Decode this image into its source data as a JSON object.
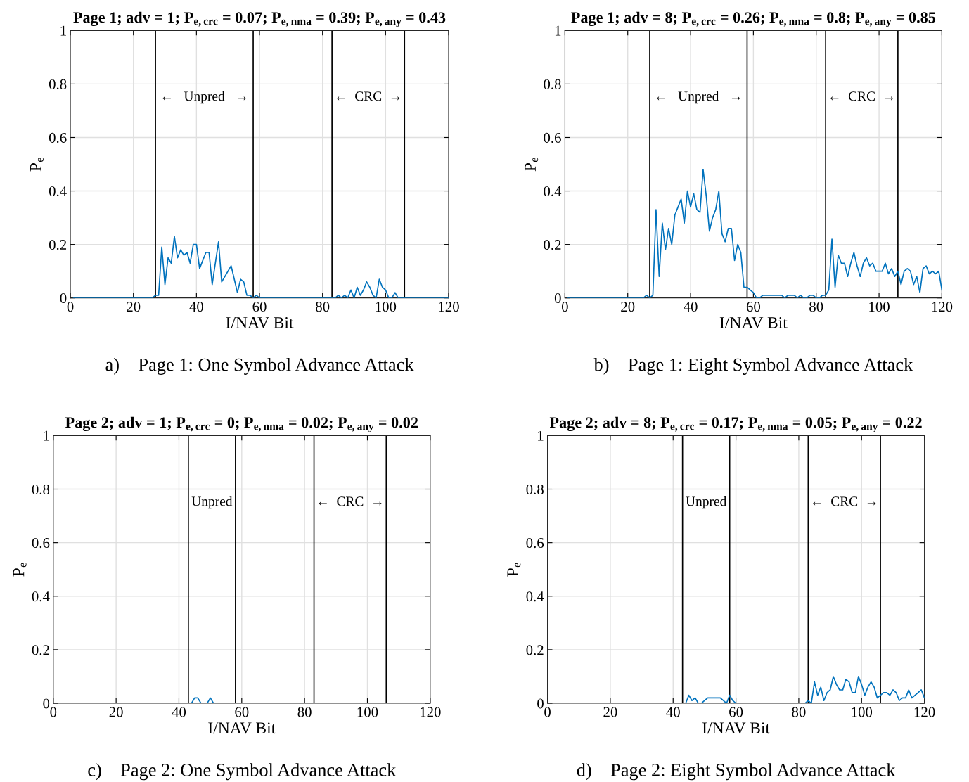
{
  "chart_data": [
    {
      "type": "line",
      "title": "Page 1; adv = 1; P$_{e,crc}$ = 0.07; P$_{e,nma}$ = 0.39; P$_{e,any}$ = 0.43",
      "xlabel": "I/NAV Bit",
      "ylabel": "P$_{e}$",
      "xlim": [
        0,
        120
      ],
      "xticks": [
        0,
        20,
        40,
        60,
        80,
        100,
        120
      ],
      "ylim": [
        0,
        1
      ],
      "yticks": [
        0,
        0.2,
        0.4,
        0.6,
        0.8,
        1
      ],
      "grid": true,
      "series": [
        {
          "color": "#0072bd",
          "x": [
            1,
            2,
            3,
            4,
            5,
            6,
            7,
            8,
            9,
            10,
            11,
            12,
            13,
            14,
            15,
            16,
            17,
            18,
            19,
            20,
            21,
            22,
            23,
            24,
            25,
            26,
            27,
            28,
            29,
            30,
            31,
            32,
            33,
            34,
            35,
            36,
            37,
            38,
            39,
            40,
            41,
            42,
            43,
            44,
            45,
            46,
            47,
            48,
            49,
            50,
            51,
            52,
            53,
            54,
            55,
            56,
            57,
            58,
            59,
            60,
            61,
            62,
            63,
            64,
            65,
            66,
            67,
            68,
            69,
            70,
            71,
            72,
            73,
            74,
            75,
            76,
            77,
            78,
            79,
            80,
            81,
            82,
            83,
            84,
            85,
            86,
            87,
            88,
            89,
            90,
            91,
            92,
            93,
            94,
            95,
            96,
            97,
            98,
            99,
            100,
            101,
            102,
            103,
            104,
            105,
            106,
            107,
            108,
            109,
            110,
            111,
            112,
            113,
            114,
            115,
            116,
            117,
            118,
            119,
            120
          ],
          "values": [
            0,
            0,
            0,
            0,
            0,
            0,
            0,
            0,
            0,
            0,
            0,
            0,
            0,
            0,
            0,
            0,
            0,
            0,
            0,
            0,
            0,
            0,
            0,
            0,
            0,
            0,
            0.01,
            0.01,
            0.19,
            0.05,
            0.15,
            0.13,
            0.23,
            0.15,
            0.18,
            0.16,
            0.17,
            0.13,
            0.2,
            0.2,
            0.11,
            0.14,
            0.17,
            0.17,
            0.05,
            0.13,
            0.21,
            0.06,
            0.08,
            0.1,
            0.12,
            0.07,
            0.02,
            0.07,
            0.06,
            0.01,
            0.01,
            0,
            0.01,
            0,
            0,
            0,
            0,
            0,
            0,
            0,
            0,
            0,
            0,
            0,
            0,
            0,
            0,
            0,
            0,
            0,
            0,
            0,
            0,
            0,
            0,
            0,
            0,
            0,
            0.01,
            0,
            0.01,
            0,
            0.03,
            0,
            0.04,
            0.01,
            0.03,
            0.06,
            0.04,
            0.01,
            0,
            0.07,
            0.04,
            0.03,
            0,
            0,
            0.02,
            0,
            0,
            0,
            0,
            0,
            0,
            0,
            0,
            0,
            0,
            0,
            0,
            0,
            0,
            0,
            0,
            0
          ]
        }
      ],
      "ref_lines": [
        {
          "axis": "x",
          "value": 27,
          "color": "#000000"
        },
        {
          "axis": "x",
          "value": 58,
          "color": "#000000"
        },
        {
          "axis": "x",
          "value": 83,
          "color": "#000000"
        },
        {
          "axis": "x",
          "value": 106,
          "color": "#000000"
        }
      ],
      "annotations": [
        "←   Unpred   →",
        "←  CRC  →",
        "a)    Page 1: One Symbol Advance Attack"
      ]
    },
    {
      "type": "line",
      "title": "Page 1; adv = 8; P$_{e,crc}$ = 0.26; P$_{e,nma}$ = 0.8; P$_{e,any}$ = 0.85",
      "xlabel": "I/NAV Bit",
      "ylabel": "P$_{e}$",
      "xlim": [
        0,
        120
      ],
      "xticks": [
        0,
        20,
        40,
        60,
        80,
        100,
        120
      ],
      "ylim": [
        0,
        1
      ],
      "yticks": [
        0,
        0.2,
        0.4,
        0.6,
        0.8,
        1
      ],
      "grid": true,
      "series": [
        {
          "color": "#0072bd",
          "x": [
            1,
            2,
            3,
            4,
            5,
            6,
            7,
            8,
            9,
            10,
            11,
            12,
            13,
            14,
            15,
            16,
            17,
            18,
            19,
            20,
            21,
            22,
            23,
            24,
            25,
            26,
            27,
            28,
            29,
            30,
            31,
            32,
            33,
            34,
            35,
            36,
            37,
            38,
            39,
            40,
            41,
            42,
            43,
            44,
            45,
            46,
            47,
            48,
            49,
            50,
            51,
            52,
            53,
            54,
            55,
            56,
            57,
            58,
            59,
            60,
            61,
            62,
            63,
            64,
            65,
            66,
            67,
            68,
            69,
            70,
            71,
            72,
            73,
            74,
            75,
            76,
            77,
            78,
            79,
            80,
            81,
            82,
            83,
            84,
            85,
            86,
            87,
            88,
            89,
            90,
            91,
            92,
            93,
            94,
            95,
            96,
            97,
            98,
            99,
            100,
            101,
            102,
            103,
            104,
            105,
            106,
            107,
            108,
            109,
            110,
            111,
            112,
            113,
            114,
            115,
            116,
            117,
            118,
            119,
            120
          ],
          "values": [
            0,
            0,
            0,
            0,
            0,
            0,
            0,
            0,
            0,
            0,
            0,
            0,
            0,
            0,
            0,
            0,
            0,
            0,
            0,
            0,
            0,
            0,
            0,
            0,
            0,
            0.01,
            0,
            0.01,
            0.33,
            0.08,
            0.28,
            0.18,
            0.26,
            0.2,
            0.31,
            0.34,
            0.37,
            0.28,
            0.4,
            0.34,
            0.39,
            0.33,
            0.32,
            0.48,
            0.38,
            0.25,
            0.3,
            0.33,
            0.4,
            0.24,
            0.21,
            0.26,
            0.26,
            0.14,
            0.2,
            0.17,
            0.04,
            0.04,
            0.03,
            0.02,
            0,
            0,
            0.01,
            0.01,
            0.01,
            0.01,
            0.01,
            0.01,
            0.01,
            0,
            0.01,
            0.01,
            0.01,
            0,
            0.01,
            0,
            0,
            0.01,
            0.01,
            0,
            0,
            0.01,
            0.01,
            0.03,
            0.22,
            0.04,
            0.16,
            0.13,
            0.13,
            0.08,
            0.13,
            0.17,
            0.12,
            0.08,
            0.13,
            0.15,
            0.12,
            0.13,
            0.1,
            0.1,
            0.1,
            0.13,
            0.09,
            0.11,
            0.08,
            0.1,
            0.05,
            0.1,
            0.11,
            0.1,
            0.05,
            0.08,
            0.02,
            0.11,
            0.12,
            0.09,
            0.1,
            0.09,
            0.1,
            0.03
          ]
        }
      ],
      "ref_lines": [
        {
          "axis": "x",
          "value": 27,
          "color": "#000000"
        },
        {
          "axis": "x",
          "value": 58,
          "color": "#000000"
        },
        {
          "axis": "x",
          "value": 83,
          "color": "#000000"
        },
        {
          "axis": "x",
          "value": 106,
          "color": "#000000"
        }
      ],
      "annotations": [
        "←   Unpred   →",
        "←  CRC  →",
        "b)    Page 1: Eight Symbol Advance Attack"
      ]
    },
    {
      "type": "line",
      "title": "Page 2; adv = 1; P$_{e,crc}$ = 0; P$_{e,nma}$ = 0.02; P$_{e,any}$ = 0.02",
      "xlabel": "I/NAV Bit",
      "ylabel": "P$_{e}$",
      "xlim": [
        0,
        120
      ],
      "xticks": [
        0,
        20,
        40,
        60,
        80,
        100,
        120
      ],
      "ylim": [
        0,
        1
      ],
      "yticks": [
        0,
        0.2,
        0.4,
        0.6,
        0.8,
        1
      ],
      "grid": true,
      "series": [
        {
          "color": "#0072bd",
          "x": [
            1,
            2,
            3,
            4,
            5,
            6,
            7,
            8,
            9,
            10,
            11,
            12,
            13,
            14,
            15,
            16,
            17,
            18,
            19,
            20,
            21,
            22,
            23,
            24,
            25,
            26,
            27,
            28,
            29,
            30,
            31,
            32,
            33,
            34,
            35,
            36,
            37,
            38,
            39,
            40,
            41,
            42,
            43,
            44,
            45,
            46,
            47,
            48,
            49,
            50,
            51,
            52,
            53,
            54,
            55,
            56,
            57,
            58,
            59,
            60,
            61,
            62,
            63,
            64,
            65,
            66,
            67,
            68,
            69,
            70,
            71,
            72,
            73,
            74,
            75,
            76,
            77,
            78,
            79,
            80,
            81,
            82,
            83,
            84,
            85,
            86,
            87,
            88,
            89,
            90,
            91,
            92,
            93,
            94,
            95,
            96,
            97,
            98,
            99,
            100,
            101,
            102,
            103,
            104,
            105,
            106,
            107,
            108,
            109,
            110,
            111,
            112,
            113,
            114,
            115,
            116,
            117,
            118,
            119,
            120
          ],
          "values": [
            0,
            0,
            0,
            0,
            0,
            0,
            0,
            0,
            0,
            0,
            0,
            0,
            0,
            0,
            0,
            0,
            0,
            0,
            0,
            0,
            0,
            0,
            0,
            0,
            0,
            0,
            0,
            0,
            0,
            0,
            0,
            0,
            0,
            0,
            0,
            0,
            0,
            0,
            0,
            0,
            0,
            0,
            0,
            0,
            0.02,
            0.02,
            0,
            0,
            0,
            0.02,
            0,
            0,
            0,
            0,
            0,
            0,
            0,
            0,
            0,
            0,
            0,
            0,
            0,
            0,
            0,
            0,
            0,
            0,
            0,
            0,
            0,
            0,
            0,
            0,
            0,
            0,
            0,
            0,
            0,
            0,
            0,
            0,
            0,
            0,
            0,
            0,
            0,
            0,
            0,
            0,
            0,
            0,
            0,
            0,
            0,
            0,
            0,
            0,
            0,
            0,
            0,
            0,
            0,
            0,
            0,
            0,
            0,
            0,
            0,
            0,
            0,
            0,
            0,
            0,
            0,
            0,
            0,
            0,
            0,
            0
          ]
        }
      ],
      "ref_lines": [
        {
          "axis": "x",
          "value": 43,
          "color": "#000000"
        },
        {
          "axis": "x",
          "value": 58,
          "color": "#000000"
        },
        {
          "axis": "x",
          "value": 83,
          "color": "#000000"
        },
        {
          "axis": "x",
          "value": 106,
          "color": "#000000"
        }
      ],
      "annotations": [
        "Unpred",
        "←  CRC  →",
        "c)    Page 2: One Symbol Advance Attack"
      ]
    },
    {
      "type": "line",
      "title": "Page 2; adv = 8; P$_{e,crc}$ = 0.17; P$_{e,nma}$ = 0.05; P$_{e,any}$ = 0.22",
      "xlabel": "I/NAV Bit",
      "ylabel": "P$_{e}$",
      "xlim": [
        0,
        120
      ],
      "xticks": [
        0,
        20,
        40,
        60,
        80,
        100,
        120
      ],
      "ylim": [
        0,
        1
      ],
      "yticks": [
        0,
        0.2,
        0.4,
        0.6,
        0.8,
        1
      ],
      "grid": true,
      "series": [
        {
          "color": "#0072bd",
          "x": [
            1,
            2,
            3,
            4,
            5,
            6,
            7,
            8,
            9,
            10,
            11,
            12,
            13,
            14,
            15,
            16,
            17,
            18,
            19,
            20,
            21,
            22,
            23,
            24,
            25,
            26,
            27,
            28,
            29,
            30,
            31,
            32,
            33,
            34,
            35,
            36,
            37,
            38,
            39,
            40,
            41,
            42,
            43,
            44,
            45,
            46,
            47,
            48,
            49,
            50,
            51,
            52,
            53,
            54,
            55,
            56,
            57,
            58,
            59,
            60,
            61,
            62,
            63,
            64,
            65,
            66,
            67,
            68,
            69,
            70,
            71,
            72,
            73,
            74,
            75,
            76,
            77,
            78,
            79,
            80,
            81,
            82,
            83,
            84,
            85,
            86,
            87,
            88,
            89,
            90,
            91,
            92,
            93,
            94,
            95,
            96,
            97,
            98,
            99,
            100,
            101,
            102,
            103,
            104,
            105,
            106,
            107,
            108,
            109,
            110,
            111,
            112,
            113,
            114,
            115,
            116,
            117,
            118,
            119,
            120
          ],
          "values": [
            0,
            0,
            0,
            0,
            0,
            0,
            0,
            0,
            0,
            0,
            0,
            0,
            0,
            0,
            0,
            0,
            0,
            0,
            0,
            0,
            0,
            0,
            0,
            0,
            0,
            0,
            0,
            0,
            0,
            0,
            0,
            0,
            0,
            0,
            0,
            0,
            0,
            0,
            0,
            0,
            0,
            0,
            0,
            0,
            0.03,
            0.01,
            0.02,
            0,
            0,
            0.01,
            0.02,
            0.02,
            0.02,
            0.02,
            0.02,
            0.01,
            0,
            0.03,
            0.01,
            0,
            0,
            0,
            0,
            0,
            0,
            0,
            0,
            0,
            0,
            0,
            0,
            0,
            0,
            0,
            0,
            0,
            0,
            0,
            0,
            0,
            0,
            0,
            0.01,
            0,
            0.08,
            0.03,
            0.06,
            0.01,
            0.04,
            0.05,
            0.1,
            0.07,
            0.05,
            0.05,
            0.09,
            0.08,
            0.04,
            0.04,
            0.1,
            0.07,
            0.03,
            0.06,
            0.08,
            0.06,
            0.02,
            0.03,
            0.04,
            0.04,
            0.03,
            0.05,
            0.04,
            0.01,
            0.02,
            0.02,
            0.05,
            0.02,
            0.03,
            0.04,
            0.05,
            0.02
          ]
        }
      ],
      "ref_lines": [
        {
          "axis": "x",
          "value": 43,
          "color": "#000000"
        },
        {
          "axis": "x",
          "value": 58,
          "color": "#000000"
        },
        {
          "axis": "x",
          "value": 83,
          "color": "#000000"
        },
        {
          "axis": "x",
          "value": 106,
          "color": "#000000"
        }
      ],
      "annotations": [
        "Unpred",
        "←  CRC  →",
        "d)    Page 2: Eight Symbol Advance Attack"
      ]
    }
  ]
}
